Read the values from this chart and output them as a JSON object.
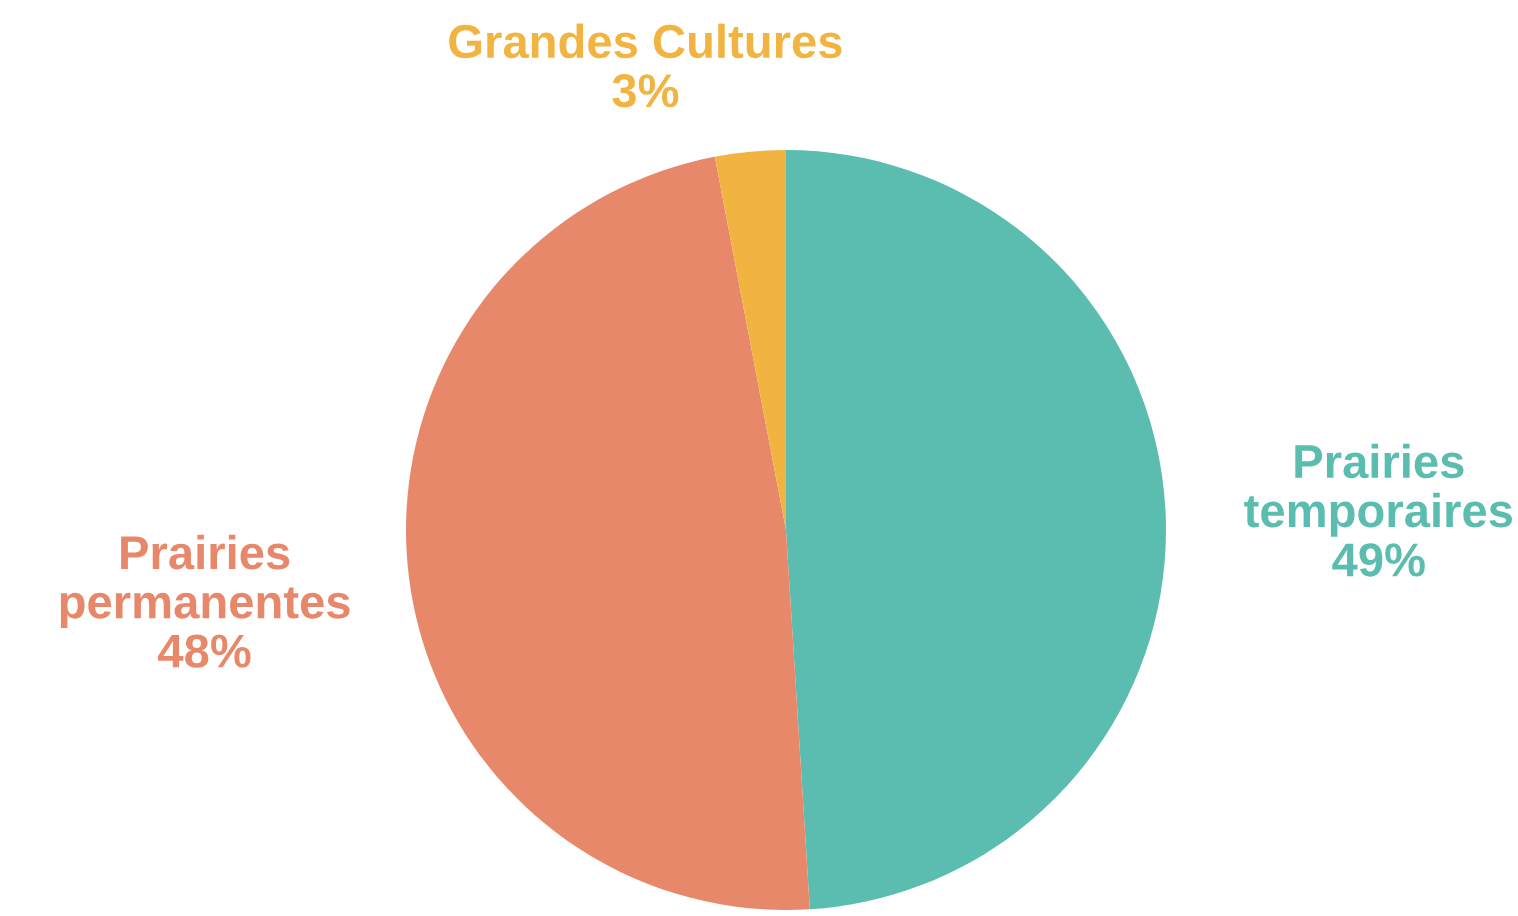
{
  "chart_data": {
    "type": "pie",
    "categories": [
      "Prairies temporaires",
      "Prairies permanentes",
      "Grandes Cultures"
    ],
    "values": [
      49,
      48,
      3
    ],
    "value_labels": [
      "49%",
      "48%",
      "3%"
    ],
    "colors": [
      "#5bbcb0",
      "#e8886a",
      "#f2b441"
    ]
  }
}
